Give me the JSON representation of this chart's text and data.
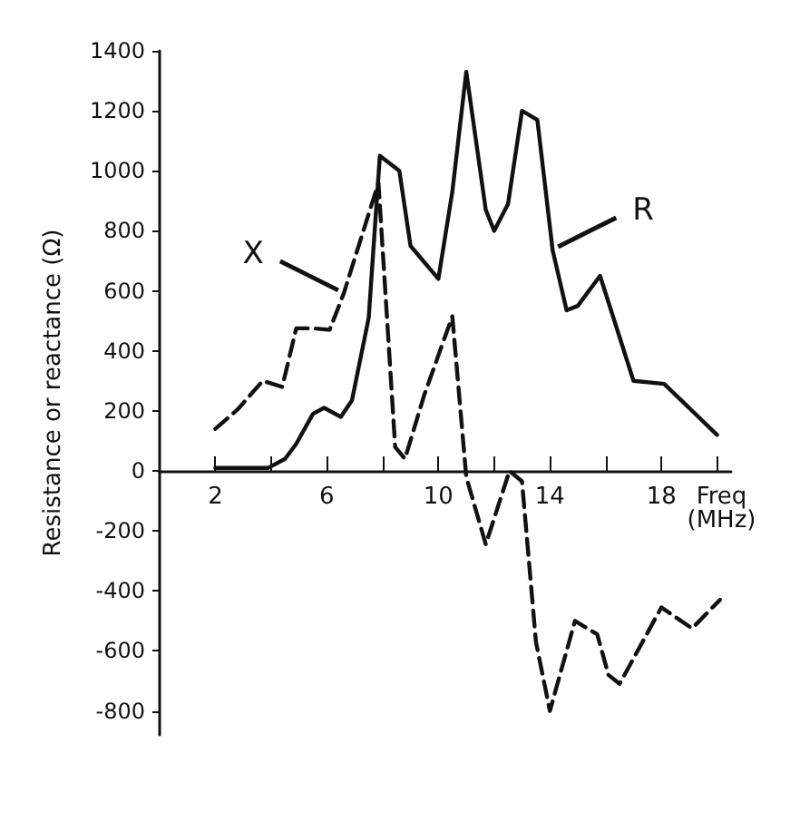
{
  "chart_data": {
    "type": "line",
    "xlabel": "Freq (MHz)",
    "ylabel": "Resistance or reactance (Ω)",
    "xlim": [
      0,
      20.5
    ],
    "xticks": [
      {
        "value": 2,
        "label": "2"
      },
      {
        "value": 4,
        "label": null
      },
      {
        "value": 6,
        "label": "6"
      },
      {
        "value": 8,
        "label": null
      },
      {
        "value": 10,
        "label": "10"
      },
      {
        "value": 12,
        "label": null
      },
      {
        "value": 14,
        "label": "14"
      },
      {
        "value": 16,
        "label": null
      },
      {
        "value": 18,
        "label": "18"
      },
      {
        "value": 20,
        "label": null
      }
    ],
    "ylim": [
      -880,
      1400
    ],
    "yticks": [
      -800,
      -600,
      -400,
      -200,
      0,
      200,
      400,
      600,
      800,
      1000,
      1200,
      1400
    ],
    "grid": false,
    "legend": false,
    "marker": "none",
    "series": [
      {
        "name": "R",
        "color": "#111111",
        "line_style": "solid",
        "x": [
          2,
          3.9,
          4.5,
          4.9,
          5.5,
          5.9,
          6.5,
          6.9,
          7.5,
          7.9,
          8.6,
          9.0,
          10.0,
          10.5,
          11.0,
          11.7,
          12.0,
          12.5,
          13.0,
          13.55,
          14.1,
          14.6,
          15.0,
          15.8,
          17.0,
          18.1,
          20
        ],
        "values": [
          10,
          10,
          40,
          90,
          190,
          210,
          180,
          235,
          510,
          1050,
          1000,
          750,
          640,
          930,
          1330,
          870,
          800,
          890,
          1200,
          1170,
          735,
          535,
          550,
          650,
          300,
          290,
          120
        ]
      },
      {
        "name": "X",
        "color": "#111111",
        "line_style": "dashed",
        "x": [
          2,
          2.8,
          3.7,
          4.4,
          4.9,
          5.5,
          6.1,
          6.6,
          7.85,
          8.45,
          8.8,
          9.5,
          10.5,
          11.0,
          11.7,
          12.55,
          13.0,
          13.5,
          14.0,
          14.9,
          15.7,
          16.1,
          16.5,
          18.0,
          19.1,
          20.1
        ],
        "values": [
          140,
          205,
          300,
          280,
          475,
          475,
          470,
          590,
          960,
          80,
          40,
          255,
          515,
          -20,
          -245,
          0,
          -35,
          -570,
          -800,
          -500,
          -545,
          -680,
          -710,
          -455,
          -525,
          -430
        ]
      }
    ]
  }
}
